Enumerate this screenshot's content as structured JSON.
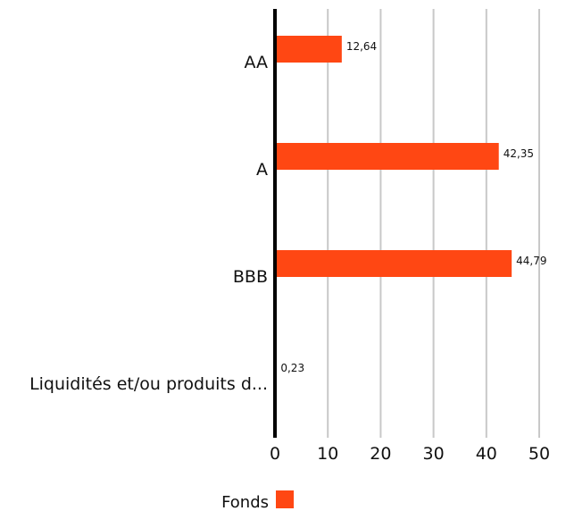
{
  "chart_data": {
    "type": "bar",
    "orientation": "horizontal",
    "categories": [
      "AA",
      "A",
      "BBB",
      "Liquidités et/ou produits d..."
    ],
    "series": [
      {
        "name": "Fonds",
        "values": [
          12.64,
          42.35,
          44.79,
          0.23
        ]
      }
    ],
    "data_labels": [
      "12,64",
      "42,35",
      "44,79",
      "0,23"
    ],
    "x_ticks": [
      "0",
      "10",
      "20",
      "30",
      "40",
      "50"
    ],
    "xlim": [
      0,
      50
    ],
    "grid": true,
    "legend_position": "bottom",
    "colors": {
      "bar": "#ff4713",
      "grid": "#c8c8c8",
      "axis": "#000000"
    }
  }
}
